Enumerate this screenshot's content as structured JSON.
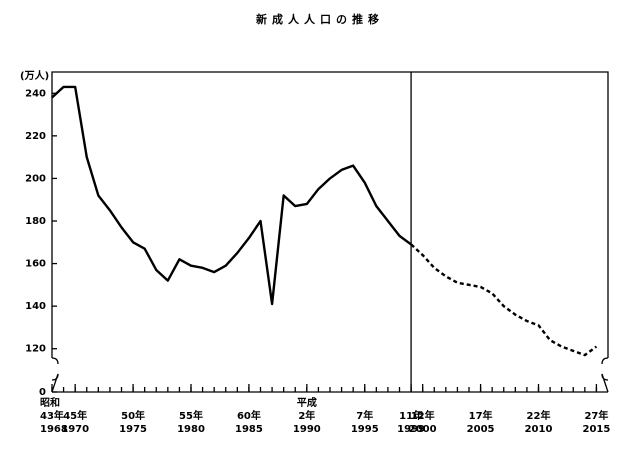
{
  "chart_data": {
    "type": "line",
    "title": "新成人人口の推移",
    "ylabel": "(万人)",
    "x": [
      1968,
      1969,
      1970,
      1971,
      1972,
      1973,
      1974,
      1975,
      1976,
      1977,
      1978,
      1979,
      1980,
      1981,
      1982,
      1983,
      1984,
      1985,
      1986,
      1987,
      1988,
      1989,
      1990,
      1991,
      1992,
      1993,
      1994,
      1995,
      1996,
      1997,
      1998,
      1999,
      2000,
      2001,
      2002,
      2003,
      2004,
      2005,
      2006,
      2007,
      2008,
      2009,
      2010,
      2011,
      2012,
      2013,
      2014,
      2015
    ],
    "series": [
      {
        "color": "#000000",
        "style": "solid",
        "values": [
          238,
          243,
          243,
          210,
          192,
          185,
          177,
          170,
          167,
          157,
          152,
          162,
          159,
          158,
          156,
          159,
          165,
          172,
          180,
          141,
          192,
          187,
          188,
          195,
          200,
          204,
          206,
          198,
          187,
          180,
          173,
          169,
          null,
          null,
          null,
          null,
          null,
          null,
          null,
          null,
          null,
          null,
          null,
          null,
          null,
          null,
          null,
          null
        ]
      },
      {
        "color": "#000000",
        "style": "dashed",
        "values": [
          null,
          null,
          null,
          null,
          null,
          null,
          null,
          null,
          null,
          null,
          null,
          null,
          null,
          null,
          null,
          null,
          null,
          null,
          null,
          null,
          null,
          null,
          null,
          null,
          null,
          null,
          null,
          null,
          null,
          null,
          null,
          169,
          164,
          158,
          154,
          151,
          150,
          149,
          146,
          140,
          136,
          133,
          131,
          124,
          121,
          119,
          117,
          121
        ]
      }
    ],
    "xlim": [
      1968,
      2016
    ],
    "ylim": [
      110,
      250
    ],
    "axis_break": true,
    "divider_x": 1999,
    "yticks": [
      0,
      120,
      140,
      160,
      180,
      200,
      220,
      240
    ],
    "xticks": [
      {
        "value": 1968,
        "label": "1968",
        "era": "昭和",
        "japanese": "43年"
      },
      {
        "value": 1970,
        "label": "1970",
        "japanese": "45年"
      },
      {
        "value": 1975,
        "label": "1975",
        "japanese": "50年"
      },
      {
        "value": 1980,
        "label": "1980",
        "japanese": "55年"
      },
      {
        "value": 1985,
        "label": "1985",
        "japanese": "60年"
      },
      {
        "value": 1990,
        "label": "1990",
        "era": "平成",
        "japanese": "2年"
      },
      {
        "value": 1995,
        "label": "1995",
        "japanese": "7年"
      },
      {
        "value": 1999,
        "label": "1999",
        "japanese": "11年"
      },
      {
        "value": 2000,
        "label": "2000",
        "japanese": "12年"
      },
      {
        "value": 2005,
        "label": "2005",
        "japanese": "17年"
      },
      {
        "value": 2010,
        "label": "2010",
        "japanese": "22年"
      },
      {
        "value": 2015,
        "label": "2015",
        "japanese": "27年"
      }
    ]
  }
}
